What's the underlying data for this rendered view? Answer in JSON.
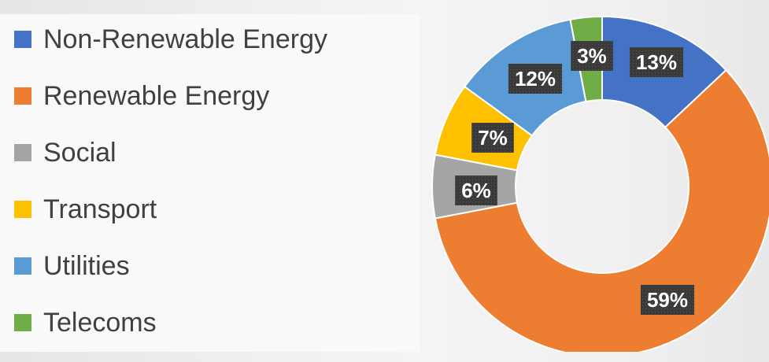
{
  "chart_data": {
    "type": "pie",
    "variant": "donut",
    "categories": [
      "Non-Renewable Energy",
      "Renewable Energy",
      "Social",
      "Transport",
      "Utilities",
      "Telecoms"
    ],
    "values": [
      13,
      59,
      6,
      7,
      12,
      3
    ],
    "data_labels": [
      "13%",
      "59%",
      "6%",
      "7%",
      "12%",
      "3%"
    ],
    "colors": [
      "#4472c4",
      "#ed7d31",
      "#a5a5a5",
      "#ffc000",
      "#5b9bd5",
      "#70ad47"
    ],
    "legend_position": "left",
    "title": ""
  }
}
